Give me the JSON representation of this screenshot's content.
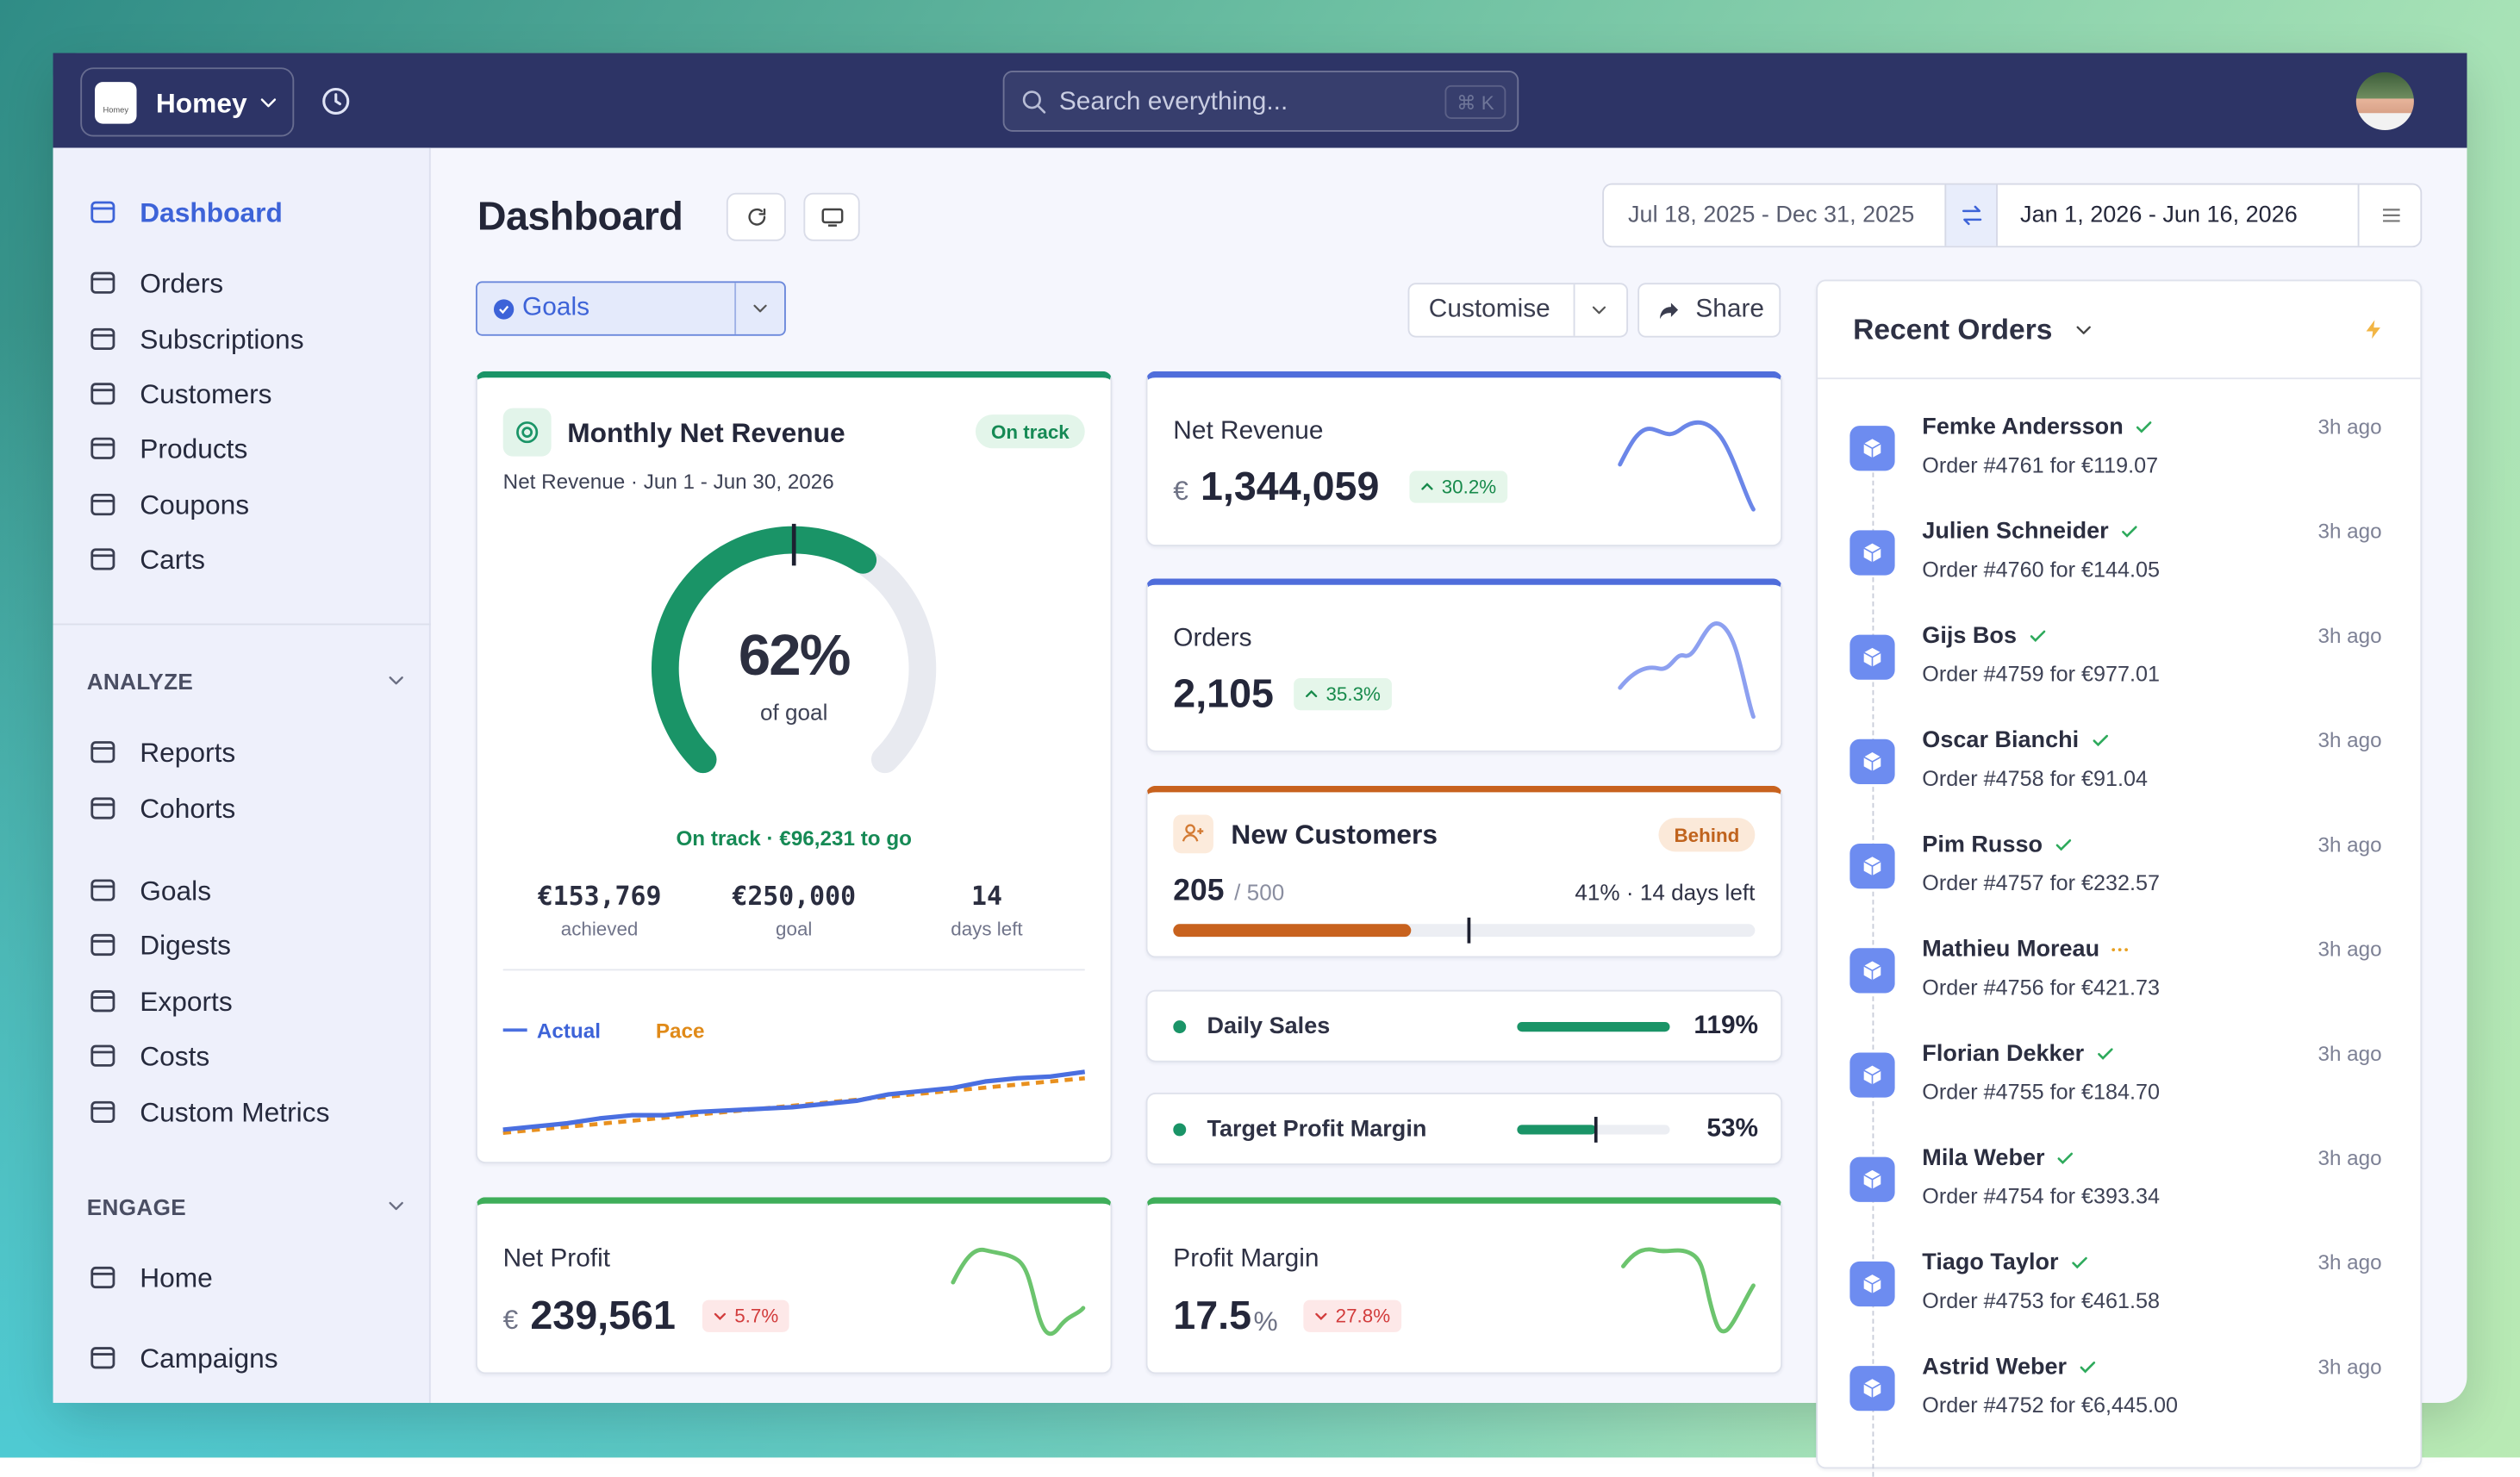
{
  "topbar": {
    "workspace": "Homey",
    "logo": "Homey",
    "search": "Search everything...",
    "shortcut": "⌘ K"
  },
  "sidebar": {
    "main": [
      "Dashboard",
      "Orders",
      "Subscriptions",
      "Customers",
      "Products",
      "Coupons",
      "Carts"
    ],
    "analyze": {
      "title": "ANALYZE",
      "items": [
        "Reports",
        "Cohorts",
        "Goals",
        "Digests",
        "Exports",
        "Costs",
        "Custom Metrics"
      ]
    },
    "engage": {
      "title": "ENGAGE",
      "items": [
        "Home",
        "Campaigns"
      ]
    }
  },
  "header": {
    "title": "Dashboard",
    "range1": "Jul 18, 2025 - Dec 31, 2025",
    "range2": "Jan 1, 2026 - Jun 16, 2026"
  },
  "toolbar": {
    "view": "Goals",
    "customise": "Customise",
    "share": "Share"
  },
  "goal_card": {
    "title": "Monthly Net Revenue",
    "status": "On track",
    "subtitle": "Net Revenue · Jun 1 - Jun 30, 2026",
    "percent": "62%",
    "percent_label": "of goal",
    "summary": "On track · €96,231 to go",
    "stats": [
      {
        "value": "€153,769",
        "label": "achieved"
      },
      {
        "value": "€250,000",
        "label": "goal"
      },
      {
        "value": "14",
        "label": "days left"
      }
    ],
    "legend": [
      "Actual",
      "Pace"
    ]
  },
  "metrics": [
    {
      "title": "Net Revenue",
      "currency": "€",
      "value": "1,344,059",
      "change": "30.2%"
    },
    {
      "title": "Orders",
      "value": "2,105",
      "change": "35.3%"
    }
  ],
  "new_customers": {
    "title": "New Customers",
    "status": "Behind",
    "value": "205",
    "target": "/ 500",
    "progress": "41% · 14 days left"
  },
  "goals": [
    {
      "name": "Daily Sales",
      "value": "119%"
    },
    {
      "name": "Target Profit Margin",
      "value": "53%"
    }
  ],
  "bottom_metrics": [
    {
      "title": "Net Profit",
      "currency": "€",
      "value": "239,561",
      "change": "5.7%"
    },
    {
      "title": "Profit Margin",
      "value": "17.5",
      "unit": "%",
      "change": "27.8%"
    }
  ],
  "recent_orders": {
    "title": "Recent Orders",
    "orders": [
      {
        "name": "Femke Andersson",
        "order": "Order #4761 for €119.07",
        "time": "3h ago",
        "icon": "check"
      },
      {
        "name": "Julien Schneider",
        "order": "Order #4760 for €144.05",
        "time": "3h ago",
        "icon": "check"
      },
      {
        "name": "Gijs Bos",
        "order": "Order #4759 for €977.01",
        "time": "3h ago",
        "icon": "check"
      },
      {
        "name": "Oscar Bianchi",
        "order": "Order #4758 for €91.04",
        "time": "3h ago",
        "icon": "check"
      },
      {
        "name": "Pim Russo",
        "order": "Order #4757 for €232.57",
        "time": "3h ago",
        "icon": "check"
      },
      {
        "name": "Mathieu Moreau",
        "order": "Order #4756 for €421.73",
        "time": "3h ago",
        "icon": "dots"
      },
      {
        "name": "Florian Dekker",
        "order": "Order #4755 for €184.70",
        "time": "3h ago",
        "icon": "check"
      },
      {
        "name": "Mila Weber",
        "order": "Order #4754 for €393.34",
        "time": "3h ago",
        "icon": "check"
      },
      {
        "name": "Tiago Taylor",
        "order": "Order #4753 for €461.58",
        "time": "3h ago",
        "icon": "check"
      },
      {
        "name": "Astrid Weber",
        "order": "Order #4752 for €6,445.00",
        "time": "3h ago",
        "icon": "check"
      }
    ]
  }
}
